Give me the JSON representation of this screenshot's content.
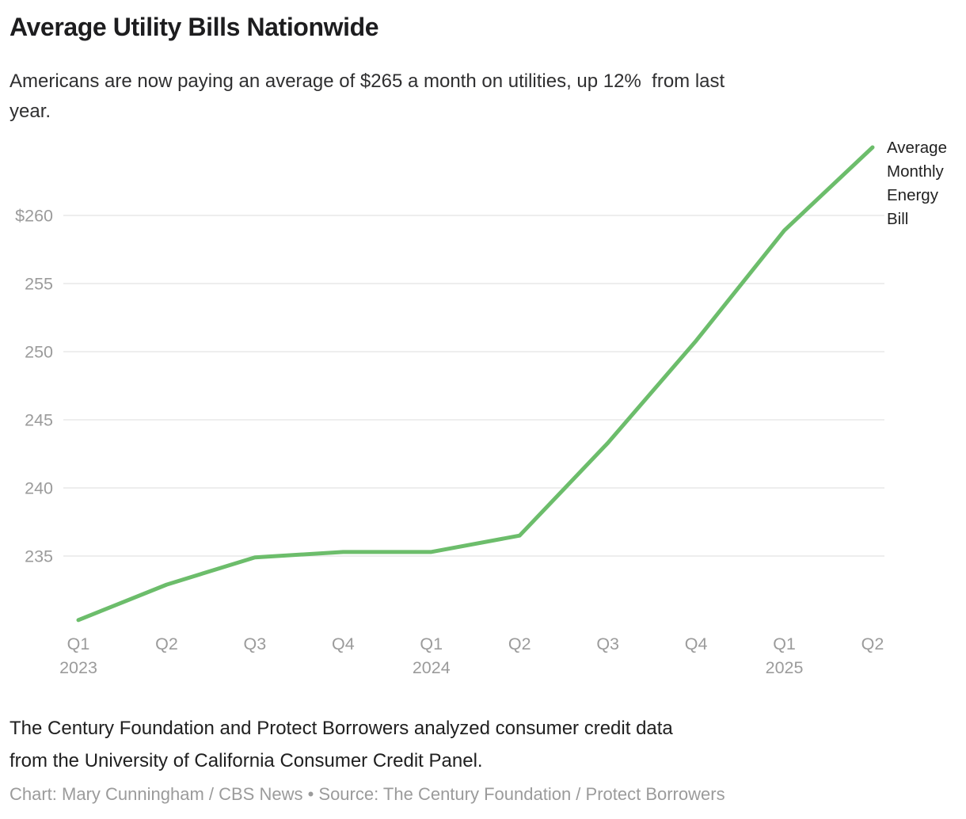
{
  "header": {
    "title": "Average Utility Bills Nationwide",
    "subtitle_lines": {
      "0": "Americans are now paying an average of $265 a month on utilities, up 12%  from last",
      "1": "year."
    }
  },
  "chart_data": {
    "type": "line",
    "title": "Average Utility Bills Nationwide",
    "subtitle": "Americans are now paying an average of $265 a month on utilities, up 12% from last year.",
    "categories": [
      "Q1 2023",
      "Q2 2023",
      "Q3 2023",
      "Q4 2023",
      "Q1 2024",
      "Q2 2024",
      "Q3 2024",
      "Q4 2024",
      "Q1 2025",
      "Q2 2025"
    ],
    "series": [
      {
        "name": "Average Monthly Energy Bill",
        "values": [
          230.3,
          232.9,
          234.9,
          235.3,
          235.3,
          236.5,
          243.3,
          250.8,
          258.9,
          265.0
        ]
      }
    ],
    "xlabel": "",
    "ylabel": "",
    "ylim": [
      229.8,
      266
    ],
    "grid": true,
    "legend_position": "right-of-line-end",
    "y_ticks": [
      {
        "value": 235,
        "label": "235"
      },
      {
        "value": 240,
        "label": "240"
      },
      {
        "value": 245,
        "label": "245"
      },
      {
        "value": 250,
        "label": "250"
      },
      {
        "value": 255,
        "label": "255"
      },
      {
        "value": 260,
        "label": "$260"
      }
    ],
    "x_ticks": [
      {
        "label": "Q1",
        "year": "2023"
      },
      {
        "label": "Q2"
      },
      {
        "label": "Q3"
      },
      {
        "label": "Q4"
      },
      {
        "label": "Q1",
        "year": "2024"
      },
      {
        "label": "Q2"
      },
      {
        "label": "Q3"
      },
      {
        "label": "Q4"
      },
      {
        "label": "Q1",
        "year": "2025"
      },
      {
        "label": "Q2"
      }
    ],
    "line_color": "#6cbd6b",
    "grid_color": "#e8e8e8",
    "tick_color": "#9b9b9b"
  },
  "footer": {
    "description_lines": {
      "0": "The Century Foundation and Protect Borrowers analyzed consumer credit data",
      "1": "from the University of California Consumer Credit Panel."
    },
    "credit": "Chart: Mary Cunningham / CBS News • Source: The Century Foundation / Protect Borrowers"
  }
}
